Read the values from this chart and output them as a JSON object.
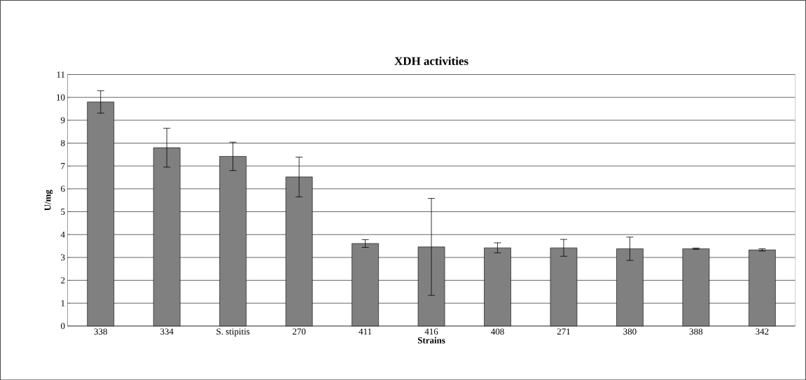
{
  "chart_data": {
    "type": "bar",
    "title": "XDH activities",
    "xlabel": "Strains",
    "ylabel": "U/mg",
    "categories": [
      "338",
      "334",
      "S. stipitis",
      "270",
      "411",
      "416",
      "408",
      "271",
      "380",
      "388",
      "342"
    ],
    "values": [
      9.8,
      7.8,
      7.42,
      6.52,
      3.61,
      3.46,
      3.42,
      3.42,
      3.38,
      3.38,
      3.33
    ],
    "errors": [
      0.49,
      0.85,
      0.62,
      0.87,
      0.17,
      2.12,
      0.22,
      0.37,
      0.51,
      0.03,
      0.05
    ],
    "color": "#808080",
    "ylim": [
      0,
      11
    ],
    "yticks": [
      0,
      1,
      2,
      3,
      4,
      5,
      6,
      7,
      8,
      9,
      10,
      11
    ],
    "grid": "y"
  }
}
